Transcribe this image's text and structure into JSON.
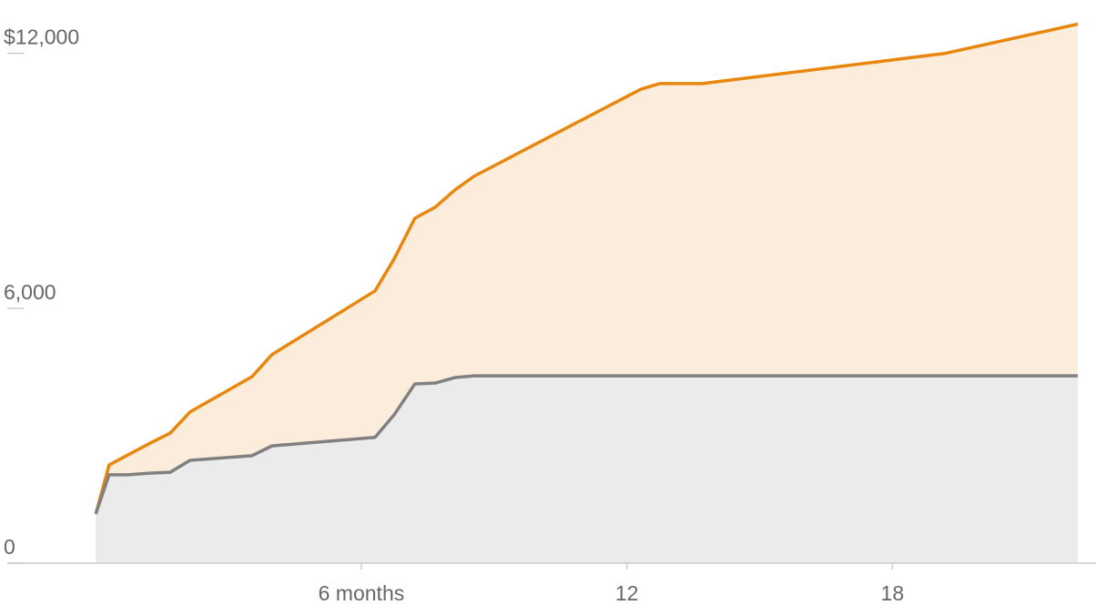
{
  "chart_data": {
    "type": "area",
    "x": [
      0,
      0.3,
      0.73,
      1.24,
      1.68,
      2.13,
      3.53,
      3.98,
      6.31,
      6.74,
      7.21,
      7.67,
      8.12,
      8.55,
      12.32,
      12.75,
      13.7,
      19.19,
      22.19
    ],
    "series": [
      {
        "color": "#e8870e",
        "fill": "#fcecdc",
        "values": [
          1160,
          2310,
          2550,
          2830,
          3060,
          3560,
          4390,
          4910,
          6410,
          7160,
          8120,
          8380,
          8790,
          9110,
          11160,
          11290,
          11290,
          12000,
          12690
        ]
      },
      {
        "color": "#808080",
        "fill": "#ebebeb",
        "values": [
          1160,
          2080,
          2080,
          2120,
          2140,
          2420,
          2530,
          2760,
          2960,
          3490,
          4220,
          4240,
          4370,
          4410,
          4410,
          4410,
          4410,
          4410,
          4410
        ]
      }
    ],
    "xlim": [
      -2,
      22.6
    ],
    "xticks": [
      {
        "value": 6,
        "label": "6 months"
      },
      12,
      18
    ],
    "ylim": [
      0,
      12700
    ],
    "yticks": [
      0,
      {
        "value": 6000,
        "label": "6,000"
      },
      {
        "value": 12000,
        "label": "$12,000"
      }
    ]
  }
}
